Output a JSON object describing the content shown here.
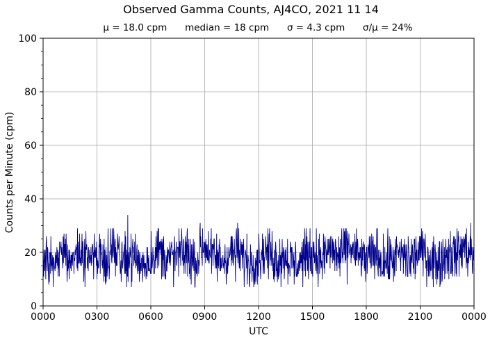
{
  "chart_data": {
    "type": "line",
    "title": "Observed Gamma Counts, AJ4CO, 2021 11 14",
    "subtitle": "μ = 18.0 cpm      median = 18 cpm      σ = 4.3 cpm      σ/μ = 24%",
    "xlabel": "UTC",
    "ylabel": "Counts per Minute (cpm)",
    "ylim": [
      0,
      100
    ],
    "xlim": [
      0,
      1440
    ],
    "x_units": "minutes after 0000 UTC",
    "x_ticks": [
      "0000",
      "0300",
      "0600",
      "0900",
      "1200",
      "1500",
      "1800",
      "2100",
      "0000"
    ],
    "y_ticks": [
      "0",
      "20",
      "40",
      "60",
      "80",
      "100"
    ],
    "grid": true,
    "series": [
      {
        "color": "#00008b",
        "x": [
          0,
          30,
          60,
          90,
          120,
          150,
          180,
          210,
          240,
          270,
          300,
          330,
          360,
          390,
          420,
          450,
          480,
          510,
          540,
          570,
          600,
          630,
          660,
          690,
          720,
          750,
          780,
          810,
          840,
          870,
          900,
          930,
          960,
          990,
          1020,
          1050,
          1080,
          1110,
          1140,
          1170,
          1200,
          1230,
          1260,
          1290,
          1320,
          1350,
          1380,
          1410,
          1440
        ],
        "values": [
          18,
          14,
          21,
          17,
          19,
          16,
          20,
          18,
          22,
          17,
          19,
          15,
          18,
          21,
          17,
          19,
          20,
          16,
          23,
          18,
          17,
          20,
          19,
          16,
          18,
          21,
          17,
          19,
          15,
          18,
          20,
          17,
          21,
          18,
          22,
          19,
          17,
          20,
          16,
          18,
          19,
          17,
          21,
          18,
          16,
          20,
          19,
          22,
          18
        ],
        "peaks": [
          {
            "x": 283,
            "value": 34
          },
          {
            "x": 525,
            "value": 31
          },
          {
            "x": 650,
            "value": 31
          },
          {
            "x": 1429,
            "value": 31
          }
        ]
      }
    ]
  }
}
